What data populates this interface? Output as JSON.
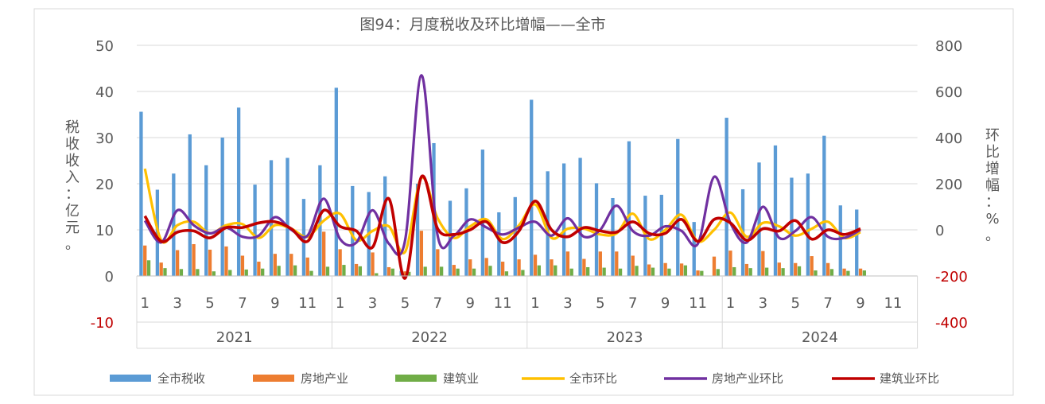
{
  "chart_data": {
    "type": "bar",
    "title": "图94：月度税收及环比增幅——全市",
    "ylabel": "税收收入：亿元。",
    "y2label": "环比增幅：%。",
    "ylim": [
      -10,
      50
    ],
    "y2lim": [
      -400,
      800
    ],
    "yticks": [
      "-10",
      "0",
      "10",
      "20",
      "30",
      "40",
      "50"
    ],
    "y2ticks": [
      "-400",
      "-200",
      "0",
      "200",
      "400",
      "600",
      "800"
    ],
    "years": [
      "2021",
      "2022",
      "2023",
      "2024"
    ],
    "month_ticks": [
      "1",
      "3",
      "5",
      "7",
      "9",
      "11"
    ],
    "grid": true,
    "legend_position": "bottom",
    "colors": {
      "city_tax": "#5b9bd5",
      "real_estate": "#ed7d31",
      "construction": "#70ad47",
      "city_mom": "#ffc000",
      "real_estate_mom": "#7030a0",
      "construction_mom": "#c00000",
      "negative_tick": "#c00000"
    },
    "bar_series": [
      {
        "name": "全市税收",
        "axis": "left",
        "values": [
          35.6,
          18.7,
          22.2,
          30.7,
          24.0,
          30.0,
          36.5,
          19.8,
          25.1,
          25.6,
          16.7,
          24.0,
          40.8,
          19.5,
          18.2,
          21.6,
          1.1,
          20.0,
          28.8,
          16.3,
          19.0,
          27.4,
          13.8,
          17.1,
          38.2,
          22.7,
          24.4,
          25.6,
          20.1,
          16.9,
          29.2,
          17.4,
          17.6,
          29.7,
          11.7,
          0.0,
          34.3,
          18.8,
          24.6,
          28.3,
          21.3,
          22.2,
          30.4,
          15.3,
          14.4
        ]
      },
      {
        "name": "房地产业",
        "axis": "left",
        "values": [
          6.6,
          2.9,
          5.6,
          6.9,
          5.7,
          6.4,
          4.4,
          3.1,
          4.8,
          4.8,
          4.0,
          9.6,
          5.8,
          2.6,
          5.1,
          1.9,
          1.0,
          9.8,
          5.8,
          2.4,
          3.6,
          3.9,
          3.1,
          3.6,
          4.6,
          3.6,
          5.3,
          3.7,
          5.3,
          5.3,
          4.4,
          2.5,
          2.8,
          2.7,
          1.2,
          4.2,
          5.5,
          2.6,
          5.4,
          2.9,
          2.8,
          4.3,
          2.8,
          1.6,
          1.6
        ]
      },
      {
        "name": "建筑业",
        "axis": "left",
        "values": [
          3.4,
          1.7,
          1.5,
          1.5,
          1.0,
          1.3,
          1.4,
          1.6,
          2.2,
          2.3,
          1.1,
          2.0,
          2.4,
          2.1,
          0.6,
          1.6,
          0.9,
          2.0,
          2.0,
          1.6,
          1.6,
          2.2,
          1.0,
          1.3,
          2.3,
          2.3,
          1.6,
          1.9,
          1.8,
          1.6,
          2.2,
          1.8,
          1.6,
          2.3,
          1.1,
          1.5,
          1.9,
          1.7,
          1.8,
          1.7,
          2.1,
          1.2,
          1.5,
          1.1,
          1.2
        ]
      }
    ],
    "line_series": [
      {
        "name": "全市环比",
        "axis": "right",
        "values": [
          265,
          -45,
          20,
          35,
          -15,
          20,
          25,
          -35,
          20,
          5,
          -30,
          40,
          70,
          -45,
          -5,
          15,
          -95,
          225,
          50,
          -35,
          15,
          45,
          -40,
          20,
          110,
          -35,
          5,
          5,
          -20,
          -15,
          70,
          -40,
          0,
          65,
          -50,
          0,
          75,
          -30,
          30,
          15,
          -25,
          5,
          35,
          -35,
          -10
        ]
      },
      {
        "name": "房地产业环比",
        "axis": "right",
        "values": [
          40,
          -55,
          85,
          20,
          -15,
          10,
          -30,
          -25,
          55,
          0,
          -25,
          135,
          -40,
          -55,
          85,
          -60,
          -45,
          670,
          -25,
          -25,
          45,
          10,
          -20,
          10,
          35,
          -25,
          50,
          -30,
          0,
          105,
          -5,
          -25,
          15,
          -5,
          -60,
          230,
          30,
          -55,
          100,
          -35,
          -5,
          55,
          -30,
          -35,
          0
        ]
      },
      {
        "name": "建筑业环比",
        "axis": "right",
        "values": [
          60,
          -50,
          -10,
          -5,
          -35,
          10,
          10,
          30,
          35,
          5,
          -50,
          85,
          15,
          -5,
          -75,
          135,
          -210,
          230,
          5,
          -20,
          0,
          35,
          -55,
          -5,
          125,
          0,
          -30,
          10,
          -5,
          -10,
          35,
          -15,
          -15,
          45,
          -50,
          45,
          30,
          -45,
          5,
          -5,
          40,
          -40,
          0,
          -20,
          5
        ]
      }
    ]
  }
}
